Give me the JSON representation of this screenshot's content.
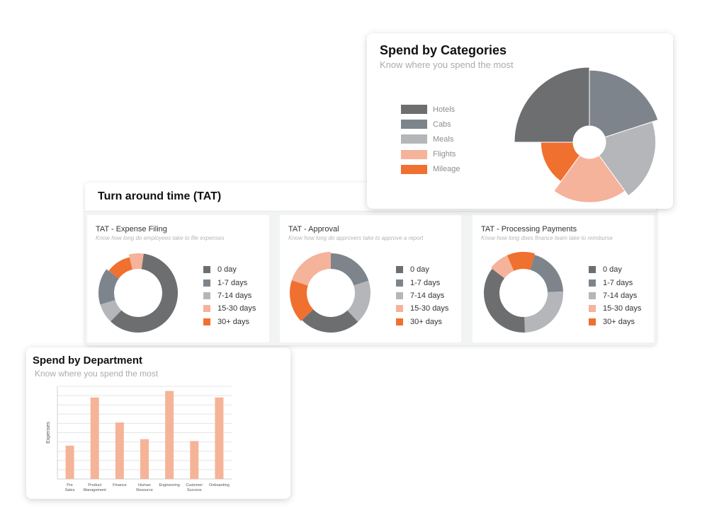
{
  "spend_by_categories": {
    "title": "Spend by Categories",
    "subtitle": "Know where you spend the most"
  },
  "tat": {
    "title": "Turn around time (TAT)",
    "panels": [
      {
        "title": "TAT - Expense Filing",
        "subtitle": "Know how long do employees take to file expenses"
      },
      {
        "title": "TAT - Approval",
        "subtitle": "Know how long do approvers take to approve a report"
      },
      {
        "title": "TAT - Processing Payments",
        "subtitle": "Know how long does finance team take to reimburse"
      }
    ]
  },
  "spend_by_department": {
    "title": "Spend by Department",
    "subtitle": "Know where you spend the most"
  },
  "colors": {
    "dark_gray": "#6d6e70",
    "slate": "#7d848c",
    "light_gray": "#b4b6b9",
    "peach": "#f4b39a",
    "orange": "#f07030",
    "bar": "#f5b498"
  },
  "chart_data": [
    {
      "type": "pie",
      "variant": "polar-area",
      "categories": [
        "Hotels",
        "Cabs",
        "Meals",
        "Flights",
        "Mileage"
      ],
      "colors": [
        "#6d6e70",
        "#7d848c",
        "#b4b6b9",
        "#f4b39a",
        "#f07030"
      ],
      "angles_deg": [
        90,
        72,
        72,
        72,
        54
      ],
      "radius_relative": [
        1.0,
        0.95,
        0.85,
        0.75,
        0.55
      ],
      "legend": "left"
    },
    {
      "type": "pie",
      "variant": "donut",
      "title": "TAT - Expense Filing",
      "categories": [
        "0 day",
        "1-7 days",
        "7-14 days",
        "15-30 days",
        "30+ days"
      ],
      "colors": [
        "#6d6e70",
        "#7d848c",
        "#b4b6b9",
        "#f4b39a",
        "#f07030"
      ],
      "values": [
        60,
        15,
        8,
        6,
        11
      ],
      "legend": "right"
    },
    {
      "type": "pie",
      "variant": "donut",
      "title": "TAT - Approval",
      "categories": [
        "0 day",
        "1-7 days",
        "7-14 days",
        "15-30 days",
        "30+ days"
      ],
      "colors": [
        "#6d6e70",
        "#7d848c",
        "#b4b6b9",
        "#f4b39a",
        "#f07030"
      ],
      "values": [
        25,
        20,
        18,
        20,
        17
      ],
      "legend": "right"
    },
    {
      "type": "pie",
      "variant": "donut",
      "title": "TAT - Processing Payments",
      "categories": [
        "0 day",
        "1-7 days",
        "7-14 days",
        "15-30 days",
        "30+ days"
      ],
      "colors": [
        "#6d6e70",
        "#7d848c",
        "#b4b6b9",
        "#f4b39a",
        "#f07030"
      ],
      "values": [
        36,
        20,
        25,
        8,
        11
      ],
      "legend": "right"
    },
    {
      "type": "bar",
      "title": "Spend by Department",
      "categories": [
        "Pre Sales",
        "Product Management",
        "Finance",
        "Human Resource",
        "Engineering",
        "Customer Success",
        "Onboarding"
      ],
      "values": [
        36,
        88,
        61,
        43,
        95,
        41,
        88
      ],
      "ylabel": "Expenses",
      "ylim": [
        0,
        100
      ],
      "grid": true
    }
  ]
}
